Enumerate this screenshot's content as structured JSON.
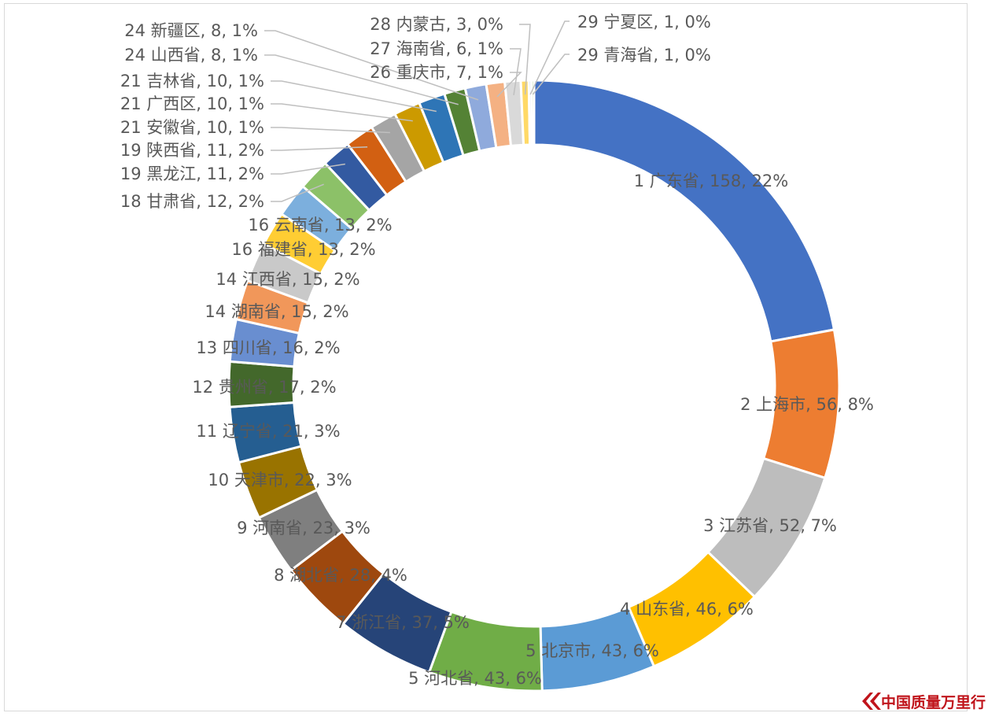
{
  "chart_data": {
    "type": "pie",
    "variant": "doughnut",
    "title": "",
    "label_format": "{rank} {name}, {value}, {percent}",
    "slices": [
      {
        "rank": "1",
        "name": "广东省",
        "value": 158,
        "percent": "22%",
        "color": "#4472C4"
      },
      {
        "rank": "2",
        "name": "上海市",
        "value": 56,
        "percent": "8%",
        "color": "#ED7D31"
      },
      {
        "rank": "3",
        "name": "江苏省",
        "value": 52,
        "percent": "7%",
        "color": "#BDBDBD"
      },
      {
        "rank": "4",
        "name": "山东省",
        "value": 46,
        "percent": "6%",
        "color": "#FFC000"
      },
      {
        "rank": "5",
        "name": "北京市",
        "value": 43,
        "percent": "6%",
        "color": "#5B9BD5"
      },
      {
        "rank": "5",
        "name": "河北省",
        "value": 43,
        "percent": "6%",
        "color": "#70AD47"
      },
      {
        "rank": "7",
        "name": "浙江省",
        "value": 37,
        "percent": "5%",
        "color": "#264478"
      },
      {
        "rank": "8",
        "name": "湖北省",
        "value": 28,
        "percent": "4%",
        "color": "#9E480E"
      },
      {
        "rank": "9",
        "name": "河南省",
        "value": 23,
        "percent": "3%",
        "color": "#7F7F7F"
      },
      {
        "rank": "10",
        "name": "天津市",
        "value": 22,
        "percent": "3%",
        "color": "#997300"
      },
      {
        "rank": "11",
        "name": "辽宁省",
        "value": 21,
        "percent": "3%",
        "color": "#255E91"
      },
      {
        "rank": "12",
        "name": "贵州省",
        "value": 17,
        "percent": "2%",
        "color": "#43682B"
      },
      {
        "rank": "13",
        "name": "四川省",
        "value": 16,
        "percent": "2%",
        "color": "#698ED0"
      },
      {
        "rank": "14",
        "name": "湖南省",
        "value": 15,
        "percent": "2%",
        "color": "#F1975A"
      },
      {
        "rank": "14",
        "name": "江西省",
        "value": 15,
        "percent": "2%",
        "color": "#C9C9C9"
      },
      {
        "rank": "16",
        "name": "福建省",
        "value": 13,
        "percent": "2%",
        "color": "#FFCD33"
      },
      {
        "rank": "16",
        "name": "云南省",
        "value": 13,
        "percent": "2%",
        "color": "#7CAFDD"
      },
      {
        "rank": "18",
        "name": "甘肃省",
        "value": 12,
        "percent": "2%",
        "color": "#8CC168"
      },
      {
        "rank": "19",
        "name": "黑龙江",
        "value": 11,
        "percent": "2%",
        "color": "#335AA1"
      },
      {
        "rank": "19",
        "name": "陕西省",
        "value": 11,
        "percent": "2%",
        "color": "#D26012"
      },
      {
        "rank": "21",
        "name": "安徽省",
        "value": 10,
        "percent": "1%",
        "color": "#A5A5A5"
      },
      {
        "rank": "21",
        "name": "广西区",
        "value": 10,
        "percent": "1%",
        "color": "#CC9A00"
      },
      {
        "rank": "21",
        "name": "吉林省",
        "value": 10,
        "percent": "1%",
        "color": "#2E75B6"
      },
      {
        "rank": "24",
        "name": "山西省",
        "value": 8,
        "percent": "1%",
        "color": "#548235"
      },
      {
        "rank": "24",
        "name": "新疆区",
        "value": 8,
        "percent": "1%",
        "color": "#8FAADC"
      },
      {
        "rank": "26",
        "name": "重庆市",
        "value": 7,
        "percent": "1%",
        "color": "#F4B183"
      },
      {
        "rank": "27",
        "name": "海南省",
        "value": 6,
        "percent": "1%",
        "color": "#D9D9D9"
      },
      {
        "rank": "28",
        "name": "内蒙古",
        "value": 3,
        "percent": "0%",
        "color": "#FFD966"
      },
      {
        "rank": "29",
        "name": "宁夏区",
        "value": 1,
        "percent": "0%",
        "color": "#9DC3E6"
      },
      {
        "rank": "29",
        "name": "青海省",
        "value": 1,
        "percent": "0%",
        "color": "#A9D18E"
      }
    ]
  },
  "watermark": {
    "text": "中国质量万里行",
    "icon": "double-chevron-logo-icon",
    "color": "#C0141B"
  }
}
